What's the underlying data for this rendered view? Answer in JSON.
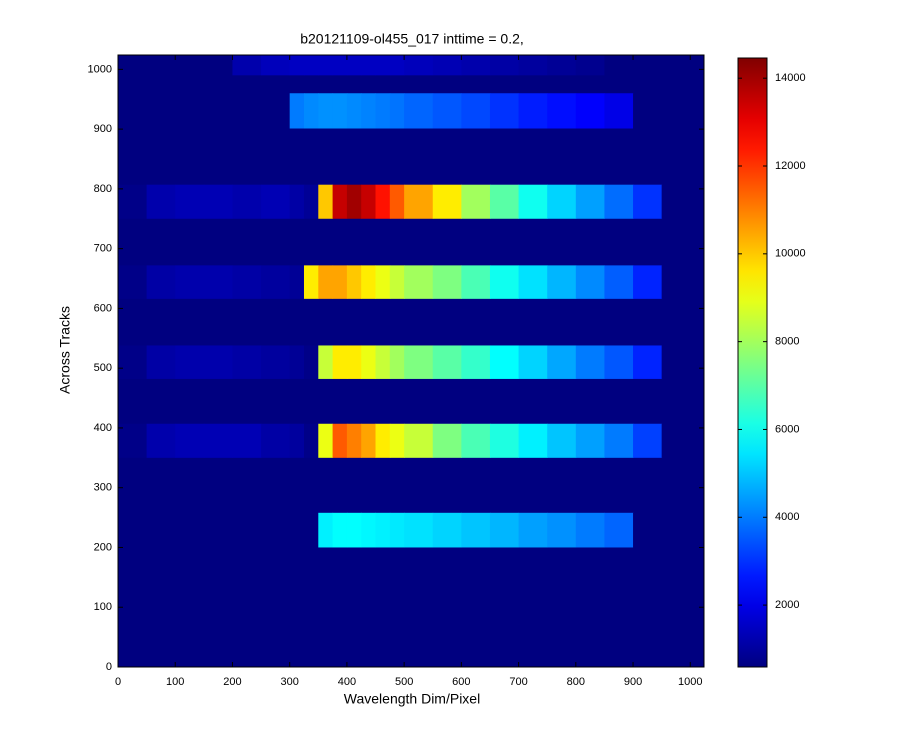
{
  "chart_data": {
    "type": "heatmap",
    "title": "b20121109-ol455_017 inttime = 0.2,",
    "xlabel": "Wavelength Dim/Pixel",
    "ylabel": "Across Tracks",
    "colormap": "jet",
    "background": 600,
    "xlim": [
      0,
      1024
    ],
    "ylim": [
      0,
      1024
    ],
    "xticks": [
      0,
      100,
      200,
      300,
      400,
      500,
      600,
      700,
      800,
      900,
      1000
    ],
    "yticks": [
      0,
      100,
      200,
      300,
      400,
      500,
      600,
      700,
      800,
      900,
      1000
    ],
    "clim": [
      590,
      14460
    ],
    "cticks": [
      2000,
      4000,
      6000,
      8000,
      10000,
      12000,
      14000
    ],
    "xbins": [
      0,
      50,
      100,
      150,
      200,
      250,
      300,
      325,
      350,
      375,
      400,
      425,
      450,
      475,
      500,
      550,
      600,
      650,
      700,
      750,
      800,
      850,
      900,
      950,
      1024
    ],
    "rows": [
      {
        "y": [
          200,
          258
        ],
        "values": [
          600,
          600,
          600,
          600,
          600,
          600,
          600,
          600,
          5600,
          5800,
          5800,
          5700,
          5600,
          5500,
          5400,
          5200,
          5000,
          4800,
          4500,
          4300,
          4000,
          3700,
          600,
          600
        ]
      },
      {
        "y": [
          350,
          407
        ],
        "values": [
          700,
          1200,
          1300,
          1300,
          1300,
          1100,
          1000,
          700,
          9000,
          11500,
          11000,
          10500,
          9500,
          9000,
          8500,
          7500,
          6800,
          6200,
          5600,
          5000,
          4500,
          4000,
          3200,
          600
        ]
      },
      {
        "y": [
          482,
          538
        ],
        "values": [
          700,
          1100,
          1200,
          1200,
          1100,
          1000,
          900,
          700,
          8500,
          9500,
          9500,
          9000,
          8500,
          8000,
          7500,
          7000,
          6500,
          5800,
          5200,
          4600,
          4000,
          3500,
          2800,
          600
        ]
      },
      {
        "y": [
          616,
          672
        ],
        "values": [
          700,
          1100,
          1200,
          1200,
          1100,
          1000,
          900,
          9500,
          10500,
          10500,
          10000,
          9500,
          9000,
          8500,
          8000,
          7500,
          6800,
          6000,
          5400,
          4800,
          4200,
          3600,
          2800,
          600
        ]
      },
      {
        "y": [
          750,
          807
        ],
        "values": [
          700,
          1200,
          1300,
          1300,
          1200,
          1300,
          1100,
          900,
          10000,
          13500,
          14000,
          13500,
          12500,
          11500,
          10500,
          9500,
          8000,
          7000,
          6000,
          5200,
          4500,
          3800,
          3000,
          600
        ]
      },
      {
        "y": [
          901,
          960
        ],
        "values": [
          600,
          600,
          600,
          600,
          600,
          600,
          4000,
          4200,
          4300,
          4300,
          4200,
          4100,
          4000,
          3900,
          3700,
          3500,
          3300,
          3000,
          2700,
          2500,
          2300,
          2000,
          600,
          600
        ]
      },
      {
        "y": [
          990,
          1024
        ],
        "values": [
          600,
          600,
          600,
          600,
          1200,
          1400,
          1500,
          1500,
          1500,
          1500,
          1500,
          1500,
          1500,
          1500,
          1400,
          1300,
          1200,
          1100,
          1000,
          900,
          800,
          600,
          600,
          600
        ]
      }
    ]
  }
}
